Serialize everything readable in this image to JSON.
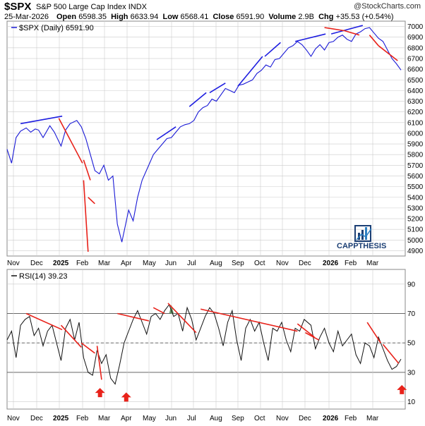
{
  "header": {
    "ticker": "$SPX",
    "name": "S&P 500 Large Cap Index",
    "exchange": "INDX",
    "date": "25-Mar-2026",
    "open_label": "Open",
    "open": "6598.35",
    "high_label": "High",
    "high": "6633.94",
    "low_label": "Low",
    "low": "6568.41",
    "close_label": "Close",
    "close": "6591.90",
    "volume_label": "Volume",
    "volume": "2.9B",
    "chg_label": "Chg",
    "chg": "+35.53 (+0.54%)",
    "copyright": "@StockCharts.com"
  },
  "logo": {
    "text": "CAPPTHESIS"
  },
  "colors": {
    "price": "#1a1ad6",
    "trend_up": "#1e1ee0",
    "trend_down": "#e8221a",
    "arrow": "#e8221a",
    "rsi_fill": "#6a9a6a",
    "grid": "#cccccc"
  },
  "chart_data": [
    {
      "type": "line",
      "series": [
        {
          "name": "$SPX (Daily) 6591.90",
          "x_index": [
            0,
            4,
            8,
            12,
            17,
            21,
            25,
            28,
            32,
            38,
            42,
            48,
            52,
            56,
            62,
            66,
            70,
            74,
            78,
            82,
            86,
            90,
            94,
            98,
            102,
            108,
            112,
            116,
            120,
            125,
            130,
            134,
            138,
            142,
            146,
            150,
            154,
            158,
            162,
            166,
            170,
            174,
            178,
            182,
            186,
            190,
            194,
            198,
            202,
            206,
            210,
            214,
            218,
            222,
            226,
            230,
            234,
            238,
            242,
            246,
            250,
            254,
            258,
            262,
            266,
            270,
            274,
            278,
            282,
            286,
            290,
            294,
            298,
            302,
            306,
            310,
            314,
            318,
            322,
            326,
            330,
            334,
            338,
            342,
            346,
            350
          ],
          "values": [
            5850,
            5720,
            5960,
            6020,
            6050,
            6010,
            6040,
            6030,
            5960,
            6070,
            6010,
            5880,
            6030,
            6090,
            6120,
            6060,
            5950,
            5800,
            5650,
            5620,
            5700,
            5560,
            5600,
            5150,
            4980,
            5280,
            5180,
            5400,
            5560,
            5680,
            5800,
            5850,
            5900,
            5950,
            5960,
            6010,
            6060,
            6080,
            6090,
            6120,
            6200,
            6240,
            6260,
            6320,
            6300,
            6360,
            6420,
            6400,
            6380,
            6450,
            6460,
            6480,
            6500,
            6560,
            6590,
            6640,
            6620,
            6690,
            6700,
            6750,
            6800,
            6820,
            6860,
            6830,
            6780,
            6720,
            6790,
            6830,
            6780,
            6850,
            6860,
            6900,
            6920,
            6880,
            6860,
            6930,
            6950,
            6980,
            6990,
            6940,
            6890,
            6860,
            6780,
            6700,
            6650,
            6592
          ]
        }
      ],
      "title": "",
      "xlabel": "",
      "ylabel": "",
      "ylim": [
        4850,
        7050
      ],
      "yticks": [
        4900,
        5000,
        5100,
        5200,
        5300,
        5400,
        5500,
        5600,
        5700,
        5800,
        5900,
        6000,
        6100,
        6200,
        6300,
        6400,
        6500,
        6600,
        6700,
        6800,
        6900,
        7000
      ],
      "x_labels": [
        "Nov",
        "Dec",
        "2025",
        "Feb",
        "Mar",
        "Apr",
        "May",
        "Jun",
        "Jul",
        "Aug",
        "Sep",
        "Oct",
        "Nov",
        "Dec",
        "2026",
        "Feb",
        "Mar"
      ],
      "bold_labels": [
        "2025",
        "2026"
      ],
      "grid": true,
      "legend": "top-left"
    },
    {
      "type": "line",
      "series": [
        {
          "name": "RSI(14) 39.23",
          "x_index": [
            0,
            4,
            8,
            12,
            16,
            20,
            24,
            28,
            32,
            36,
            40,
            44,
            48,
            52,
            56,
            60,
            64,
            68,
            72,
            76,
            80,
            84,
            88,
            92,
            96,
            100,
            104,
            108,
            112,
            116,
            120,
            124,
            128,
            132,
            136,
            140,
            144,
            148,
            152,
            156,
            160,
            164,
            168,
            172,
            176,
            180,
            184,
            188,
            192,
            196,
            200,
            204,
            208,
            212,
            216,
            220,
            224,
            228,
            232,
            236,
            240,
            244,
            248,
            252,
            256,
            260,
            264,
            270,
            274,
            278,
            282,
            286,
            290,
            294,
            298,
            302,
            306,
            310,
            314,
            318,
            322,
            326,
            330,
            334,
            338,
            342,
            346,
            350
          ],
          "values": [
            52,
            58,
            40,
            62,
            66,
            68,
            55,
            60,
            48,
            58,
            62,
            50,
            38,
            60,
            66,
            52,
            64,
            40,
            30,
            28,
            45,
            36,
            42,
            26,
            22,
            35,
            50,
            58,
            66,
            72,
            64,
            56,
            68,
            70,
            66,
            72,
            76,
            68,
            70,
            58,
            74,
            66,
            52,
            60,
            68,
            74,
            70,
            60,
            48,
            64,
            72,
            52,
            38,
            60,
            66,
            58,
            64,
            50,
            38,
            60,
            58,
            64,
            52,
            44,
            60,
            58,
            66,
            62,
            46,
            54,
            60,
            50,
            44,
            58,
            48,
            52,
            56,
            42,
            36,
            50,
            48,
            40,
            54,
            46,
            38,
            32,
            34,
            39
          ]
        }
      ],
      "title": "",
      "xlabel": "",
      "ylabel": "",
      "ylim": [
        5,
        100
      ],
      "yticks": [
        10,
        30,
        50,
        70,
        90
      ],
      "ref_lines": [
        70,
        50,
        30
      ],
      "x_labels": [
        "Nov",
        "Dec",
        "2025",
        "Feb",
        "Mar",
        "Apr",
        "May",
        "Jun",
        "Jul",
        "Aug",
        "Sep",
        "Oct",
        "Nov",
        "Dec",
        "2026",
        "Feb",
        "Mar"
      ],
      "bold_labels": [
        "2025",
        "2026"
      ],
      "grid": true,
      "legend": "top-left"
    }
  ]
}
